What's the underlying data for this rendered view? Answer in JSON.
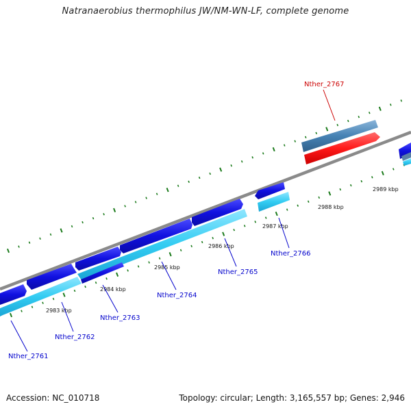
{
  "title": "Natranaerobius thermophilus JW/NM-WN-LF, complete genome",
  "footer": {
    "accession": "Accession: NC_010718",
    "summary": "Topology: circular; Length: 3,165,557 bp; Genes: 2,946"
  },
  "colors": {
    "backbone": "#808080",
    "gene_blue": "#1010e0",
    "gene_cyan": "#33ccf2",
    "gene_red": "#ff1a1a",
    "gene_steel": "#4682b4",
    "tick": "#1a7a1a",
    "label_blue": "#0000cc",
    "label_red": "#cc0000"
  },
  "ticks": [
    {
      "label": "2983 kbp"
    },
    {
      "label": "2984 kbp"
    },
    {
      "label": "2985 kbp"
    },
    {
      "label": "2986 kbp"
    },
    {
      "label": "2987 kbp"
    },
    {
      "label": "2988 kbp"
    },
    {
      "label": "2989 kbp"
    }
  ],
  "genes": [
    {
      "name": "Nther_2761",
      "color": "label_blue"
    },
    {
      "name": "Nther_2762",
      "color": "label_blue"
    },
    {
      "name": "Nther_2763",
      "color": "label_blue"
    },
    {
      "name": "Nther_2764",
      "color": "label_blue"
    },
    {
      "name": "Nther_2765",
      "color": "label_blue"
    },
    {
      "name": "Nther_2766",
      "color": "label_blue"
    },
    {
      "name": "Nther_2767",
      "color": "label_red"
    }
  ]
}
